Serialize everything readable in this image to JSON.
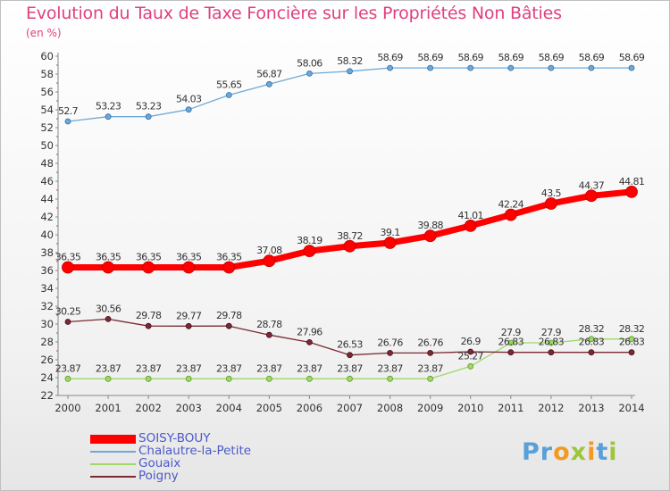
{
  "title": "Evolution du Taux de Taxe Foncière sur les Propriétés Non Bâties",
  "unit_label": "(en %)",
  "logo": {
    "text": "Proxiti"
  },
  "chart_data": {
    "type": "line",
    "x": [
      "2000",
      "2001",
      "2002",
      "2003",
      "2004",
      "2005",
      "2006",
      "2007",
      "2008",
      "2009",
      "2010",
      "2011",
      "2012",
      "2013",
      "2014"
    ],
    "ylim": [
      22,
      60
    ],
    "yticks": [
      22,
      24,
      26,
      28,
      30,
      32,
      34,
      36,
      38,
      40,
      42,
      44,
      46,
      48,
      50,
      52,
      54,
      56,
      58,
      60
    ],
    "grid": false,
    "legend_position": "bottom-left",
    "series": [
      {
        "name": "SOISY-BOUY",
        "color": "#ff0000",
        "values": [
          36.35,
          36.35,
          36.35,
          36.35,
          36.35,
          37.08,
          38.19,
          38.72,
          39.1,
          39.88,
          41.01,
          42.24,
          43.5,
          44.37,
          44.81
        ],
        "labels": [
          "36.35",
          "36.35",
          "36.35",
          "36.35",
          "36.35",
          "37.08",
          "38.19",
          "38.72",
          "39.1",
          "39.88",
          "41.01",
          "42.24",
          "43.5",
          "44.37",
          "44.81"
        ]
      },
      {
        "name": "Chalautre-la-Petite",
        "color": "#6ea8d6",
        "values": [
          52.7,
          53.23,
          53.23,
          54.03,
          55.65,
          56.87,
          58.06,
          58.32,
          58.69,
          58.69,
          58.69,
          58.69,
          58.69,
          58.69,
          58.69
        ],
        "labels": [
          "52.7",
          "53.23",
          "53.23",
          "54.03",
          "55.65",
          "56.87",
          "58.06",
          "58.32",
          "58.69",
          "58.69",
          "58.69",
          "58.69",
          "58.69",
          "58.69",
          "58.69"
        ]
      },
      {
        "name": "Gouaix",
        "color": "#9ed86a",
        "values": [
          23.87,
          23.87,
          23.87,
          23.87,
          23.87,
          23.87,
          23.87,
          23.87,
          23.87,
          23.87,
          25.27,
          27.9,
          27.9,
          28.32,
          28.32
        ],
        "labels": [
          "23.87",
          "23.87",
          "23.87",
          "23.87",
          "23.87",
          "23.87",
          "23.87",
          "23.87",
          "23.87",
          "23.87",
          "25.27",
          "27.9",
          "27.9",
          "28.32",
          "28.32"
        ]
      },
      {
        "name": "Poigny",
        "color": "#7a2a34",
        "values": [
          30.25,
          30.56,
          29.78,
          29.77,
          29.78,
          28.78,
          27.96,
          26.53,
          26.76,
          26.76,
          26.9,
          26.83,
          26.83,
          26.83,
          26.83
        ],
        "labels": [
          "30.25",
          "30.56",
          "29.78",
          "29.77",
          "29.78",
          "28.78",
          "27.96",
          "26.53",
          "26.76",
          "26.76",
          "26.9",
          "26.83",
          "26.83",
          "26.83",
          "26.83"
        ]
      }
    ]
  }
}
